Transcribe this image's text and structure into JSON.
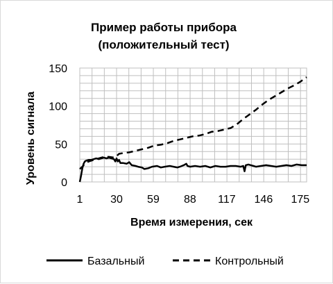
{
  "chart_data": {
    "type": "line",
    "title": [
      "Пример работы прибора",
      "(положительный тест)"
    ],
    "xlabel": "Время измерения, сек",
    "ylabel": "Уровень сигнала",
    "x_ticks": [
      "1",
      "30",
      "59",
      "88",
      "117",
      "146",
      "175"
    ],
    "xlim": [
      1,
      180
    ],
    "y_ticks": [
      "0",
      "50",
      "100",
      "150"
    ],
    "ylim": [
      0,
      150
    ],
    "grid": true,
    "legend_position": "bottom",
    "series": [
      {
        "name": "Базальный",
        "style": "solid",
        "color": "#000000",
        "points": [
          [
            1,
            0
          ],
          [
            2,
            8
          ],
          [
            3,
            18
          ],
          [
            4,
            24
          ],
          [
            5,
            27
          ],
          [
            6,
            28
          ],
          [
            8,
            29
          ],
          [
            10,
            29
          ],
          [
            12,
            30
          ],
          [
            14,
            31
          ],
          [
            16,
            30
          ],
          [
            18,
            31
          ],
          [
            20,
            32
          ],
          [
            22,
            31
          ],
          [
            24,
            32
          ],
          [
            26,
            31
          ],
          [
            28,
            30
          ],
          [
            29,
            27
          ],
          [
            30,
            31
          ],
          [
            31,
            27
          ],
          [
            32,
            29
          ],
          [
            33,
            25
          ],
          [
            35,
            25
          ],
          [
            38,
            24
          ],
          [
            40,
            26
          ],
          [
            42,
            22
          ],
          [
            45,
            21
          ],
          [
            47,
            20
          ],
          [
            50,
            19
          ],
          [
            52,
            17
          ],
          [
            55,
            18
          ],
          [
            58,
            20
          ],
          [
            62,
            21
          ],
          [
            65,
            19
          ],
          [
            68,
            20
          ],
          [
            72,
            21
          ],
          [
            75,
            20
          ],
          [
            78,
            19
          ],
          [
            80,
            20
          ],
          [
            83,
            22
          ],
          [
            85,
            24
          ],
          [
            86,
            21
          ],
          [
            88,
            20
          ],
          [
            92,
            21
          ],
          [
            96,
            20
          ],
          [
            100,
            21
          ],
          [
            104,
            19
          ],
          [
            108,
            21
          ],
          [
            112,
            20
          ],
          [
            116,
            20
          ],
          [
            120,
            21
          ],
          [
            124,
            21
          ],
          [
            128,
            20
          ],
          [
            130,
            21
          ],
          [
            131,
            14
          ],
          [
            132,
            22
          ],
          [
            134,
            23
          ],
          [
            136,
            22
          ],
          [
            138,
            21
          ],
          [
            140,
            20
          ],
          [
            144,
            21
          ],
          [
            148,
            22
          ],
          [
            152,
            21
          ],
          [
            156,
            20
          ],
          [
            160,
            21
          ],
          [
            164,
            22
          ],
          [
            168,
            21
          ],
          [
            172,
            23
          ],
          [
            176,
            22
          ],
          [
            180,
            22
          ]
        ]
      },
      {
        "name": "Контрольный",
        "style": "dashed",
        "color": "#000000",
        "points": [
          [
            1,
            17
          ],
          [
            3,
            20
          ],
          [
            5,
            24
          ],
          [
            8,
            27
          ],
          [
            12,
            29
          ],
          [
            16,
            31
          ],
          [
            20,
            33
          ],
          [
            24,
            33
          ],
          [
            28,
            32
          ],
          [
            30,
            34
          ],
          [
            32,
            37
          ],
          [
            35,
            38
          ],
          [
            40,
            39
          ],
          [
            45,
            41
          ],
          [
            50,
            43
          ],
          [
            55,
            45
          ],
          [
            60,
            48
          ],
          [
            65,
            49
          ],
          [
            70,
            51
          ],
          [
            75,
            54
          ],
          [
            80,
            56
          ],
          [
            85,
            58
          ],
          [
            90,
            60
          ],
          [
            95,
            61
          ],
          [
            100,
            63
          ],
          [
            105,
            66
          ],
          [
            110,
            67
          ],
          [
            115,
            69
          ],
          [
            120,
            71
          ],
          [
            125,
            76
          ],
          [
            130,
            83
          ],
          [
            135,
            89
          ],
          [
            140,
            95
          ],
          [
            145,
            102
          ],
          [
            150,
            108
          ],
          [
            155,
            113
          ],
          [
            160,
            118
          ],
          [
            165,
            123
          ],
          [
            170,
            127
          ],
          [
            175,
            132
          ],
          [
            180,
            138
          ]
        ]
      }
    ]
  }
}
